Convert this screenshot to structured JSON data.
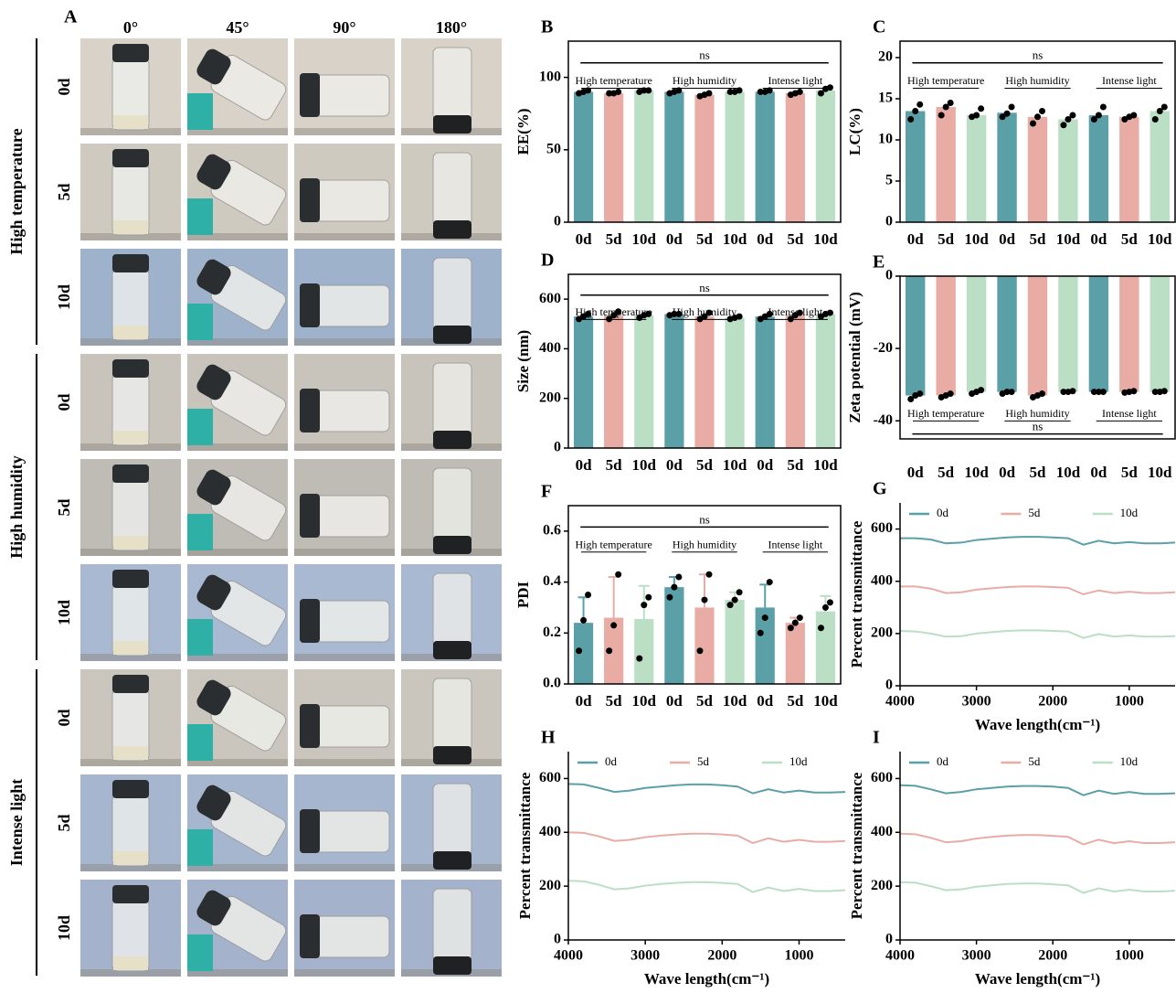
{
  "panel_a": {
    "panel": "A",
    "columns": [
      "0°",
      "45°",
      "90°",
      "180°"
    ],
    "rows": [
      "0d",
      "5d",
      "10d",
      "0d",
      "5d",
      "10d",
      "0d",
      "5d",
      "10d"
    ],
    "groups": [
      "High temperature",
      "High humidity",
      "Intense light"
    ]
  },
  "chart_data": [
    {
      "type": "bar",
      "panel": "B",
      "y_label": "EE(%)",
      "categories": [
        "0d",
        "5d",
        "10d",
        "0d",
        "5d",
        "10d",
        "0d",
        "5d",
        "10d"
      ],
      "group_labels": [
        "High temperature",
        "High humidity",
        "Intense light"
      ],
      "annotation": "ns",
      "colors": [
        "#5b9fa7",
        "#e8aca5",
        "#badfc5"
      ],
      "values": [
        90,
        89,
        91,
        90,
        88,
        90,
        90,
        89,
        91
      ],
      "points": [
        [
          89,
          90,
          91
        ],
        [
          89,
          89,
          90
        ],
        [
          90,
          91,
          91
        ],
        [
          89,
          90,
          91
        ],
        [
          87,
          88,
          89
        ],
        [
          90,
          90,
          91
        ],
        [
          90,
          90,
          91
        ],
        [
          88,
          89,
          90
        ],
        [
          89,
          92,
          93
        ]
      ],
      "ylim": [
        0,
        125
      ],
      "yticks": [
        0,
        50,
        100
      ]
    },
    {
      "type": "bar",
      "panel": "C",
      "y_label": "LC(%)",
      "categories": [
        "0d",
        "5d",
        "10d",
        "0d",
        "5d",
        "10d",
        "0d",
        "5d",
        "10d"
      ],
      "group_labels": [
        "High temperature",
        "High humidity",
        "Intense light"
      ],
      "annotation": "ns",
      "colors": [
        "#5b9fa7",
        "#e8aca5",
        "#badfc5"
      ],
      "values": [
        13.5,
        14,
        13,
        13.3,
        12.8,
        12.5,
        13,
        12.8,
        13.5
      ],
      "points": [
        [
          12.5,
          13.5,
          14.3
        ],
        [
          13,
          14,
          14.5
        ],
        [
          12.8,
          13,
          13.8
        ],
        [
          12.8,
          13.2,
          14
        ],
        [
          12,
          12.8,
          13.5
        ],
        [
          11.8,
          12.5,
          13
        ],
        [
          12.5,
          13,
          14
        ],
        [
          12.5,
          12.8,
          13
        ],
        [
          12.5,
          13.5,
          14
        ]
      ],
      "ylim": [
        0,
        22
      ],
      "yticks": [
        0,
        5,
        10,
        15,
        20
      ]
    },
    {
      "type": "bar",
      "panel": "D",
      "y_label": "Size (nm)",
      "categories": [
        "0d",
        "5d",
        "10d",
        "0d",
        "5d",
        "10d",
        "0d",
        "5d",
        "10d"
      ],
      "group_labels": [
        "High temperature",
        "High humidity",
        "Intense light"
      ],
      "annotation": "ns",
      "colors": [
        "#5b9fa7",
        "#e8aca5",
        "#badfc5"
      ],
      "values": [
        530,
        535,
        535,
        540,
        530,
        525,
        530,
        535,
        540
      ],
      "points": [
        [
          520,
          530,
          540
        ],
        [
          520,
          535,
          550
        ],
        [
          525,
          535,
          540
        ],
        [
          535,
          540,
          540
        ],
        [
          520,
          530,
          545
        ],
        [
          520,
          525,
          530
        ],
        [
          520,
          530,
          540
        ],
        [
          520,
          535,
          545
        ],
        [
          530,
          540,
          545
        ]
      ],
      "ylim": [
        0,
        700
      ],
      "yticks": [
        0,
        200,
        400,
        600
      ]
    },
    {
      "type": "bar",
      "panel": "E",
      "y_label": "Zeta potential (mV)",
      "categories": [
        "0d",
        "5d",
        "10d",
        "0d",
        "5d",
        "10d",
        "0d",
        "5d",
        "10d"
      ],
      "group_labels": [
        "High temperature",
        "High humidity",
        "Intense light"
      ],
      "annotation": "ns",
      "colors": [
        "#5b9fa7",
        "#e8aca5",
        "#badfc5"
      ],
      "values": [
        -33,
        -33,
        -32,
        -32,
        -33,
        -32,
        -32,
        -32,
        -32
      ],
      "points": [
        [
          -34,
          -33,
          -32.5
        ],
        [
          -33.5,
          -33,
          -32.5
        ],
        [
          -32.5,
          -32,
          -31.5
        ],
        [
          -32.5,
          -32,
          -32
        ],
        [
          -33.5,
          -33,
          -32.5
        ],
        [
          -32,
          -32,
          -31.8
        ],
        [
          -32,
          -32,
          -32
        ],
        [
          -32.2,
          -32,
          -31.8
        ],
        [
          -32,
          -32,
          -31.8
        ]
      ],
      "ylim": [
        -45,
        0
      ],
      "yticks": [
        -40,
        -20,
        0
      ]
    },
    {
      "type": "bar",
      "panel": "F",
      "y_label": "PDI",
      "categories": [
        "0d",
        "5d",
        "10d",
        "0d",
        "5d",
        "10d",
        "0d",
        "5d",
        "10d"
      ],
      "group_labels": [
        "High temperature",
        "High humidity",
        "Intense light"
      ],
      "annotation": "ns",
      "colors": [
        "#5b9fa7",
        "#e8aca5",
        "#badfc5"
      ],
      "values": [
        0.24,
        0.26,
        0.255,
        0.38,
        0.3,
        0.33,
        0.3,
        0.24,
        0.285
      ],
      "errors": [
        0.1,
        0.16,
        0.13,
        0.04,
        0.13,
        0.03,
        0.09,
        0.02,
        0.06
      ],
      "points": [
        [
          0.13,
          0.25,
          0.35
        ],
        [
          0.13,
          0.23,
          0.43
        ],
        [
          0.1,
          0.31,
          0.34
        ],
        [
          0.34,
          0.38,
          0.42
        ],
        [
          0.13,
          0.33,
          0.43
        ],
        [
          0.31,
          0.33,
          0.36
        ],
        [
          0.2,
          0.26,
          0.4
        ],
        [
          0.22,
          0.24,
          0.26
        ],
        [
          0.22,
          0.3,
          0.32
        ]
      ],
      "ylim": [
        0,
        0.7
      ],
      "yticks": [
        {
          "value": 0,
          "label": "0.0"
        },
        0.2,
        0.4,
        0.6
      ]
    },
    {
      "type": "line",
      "panel": "G",
      "y_label": "Percent transmittance",
      "x_label": "Wave length(cm⁻¹)",
      "x": [
        4000,
        3800,
        3600,
        3400,
        3200,
        3000,
        2800,
        2600,
        2400,
        2200,
        2000,
        1800,
        1600,
        1400,
        1200,
        1000,
        800,
        600,
        400
      ],
      "series": [
        {
          "name": "0d",
          "color": "#5b9fa7",
          "values": [
            565,
            565,
            560,
            545,
            548,
            558,
            563,
            568,
            570,
            570,
            568,
            565,
            540,
            555,
            545,
            550,
            545,
            545,
            548
          ]
        },
        {
          "name": "5d",
          "color": "#e8aca5",
          "values": [
            380,
            380,
            372,
            355,
            358,
            368,
            373,
            378,
            380,
            380,
            378,
            375,
            350,
            365,
            355,
            360,
            355,
            355,
            358
          ]
        },
        {
          "name": "10d",
          "color": "#badfc5",
          "values": [
            210,
            208,
            200,
            188,
            190,
            200,
            205,
            210,
            212,
            212,
            210,
            208,
            183,
            198,
            188,
            193,
            188,
            188,
            190
          ]
        }
      ],
      "xlim": [
        4000,
        400
      ],
      "ylim": [
        0,
        700
      ],
      "xticks": [
        4000,
        3000,
        2000,
        1000
      ],
      "yticks": [
        0,
        200,
        400,
        600
      ]
    },
    {
      "type": "line",
      "panel": "H",
      "y_label": "Percent transmittance",
      "x_label": "Wave length(cm⁻¹)",
      "x": [
        4000,
        3800,
        3600,
        3400,
        3200,
        3000,
        2800,
        2600,
        2400,
        2200,
        2000,
        1800,
        1600,
        1400,
        1200,
        1000,
        800,
        600,
        400
      ],
      "series": [
        {
          "name": "0d",
          "color": "#5b9fa7",
          "values": [
            580,
            578,
            565,
            550,
            555,
            565,
            570,
            575,
            578,
            578,
            575,
            570,
            545,
            560,
            548,
            555,
            548,
            548,
            550
          ]
        },
        {
          "name": "5d",
          "color": "#e8aca5",
          "values": [
            400,
            398,
            385,
            368,
            372,
            382,
            388,
            392,
            395,
            395,
            392,
            388,
            360,
            378,
            365,
            372,
            365,
            365,
            368
          ]
        },
        {
          "name": "10d",
          "color": "#badfc5",
          "values": [
            220,
            218,
            205,
            188,
            192,
            202,
            208,
            212,
            215,
            215,
            212,
            208,
            178,
            195,
            182,
            190,
            182,
            182,
            185
          ]
        }
      ],
      "xlim": [
        4000,
        400
      ],
      "ylim": [
        0,
        700
      ],
      "xticks": [
        4000,
        3000,
        2000,
        1000
      ],
      "yticks": [
        0,
        200,
        400,
        600
      ]
    },
    {
      "type": "line",
      "panel": "I",
      "y_label": "Percent transmittance",
      "x_label": "Wave length(cm⁻¹)",
      "x": [
        4000,
        3800,
        3600,
        3400,
        3200,
        3000,
        2800,
        2600,
        2400,
        2200,
        2000,
        1800,
        1600,
        1400,
        1200,
        1000,
        800,
        600,
        400
      ],
      "series": [
        {
          "name": "0d",
          "color": "#5b9fa7",
          "values": [
            575,
            573,
            560,
            545,
            550,
            560,
            565,
            570,
            572,
            572,
            570,
            565,
            538,
            555,
            543,
            550,
            543,
            543,
            545
          ]
        },
        {
          "name": "5d",
          "color": "#e8aca5",
          "values": [
            395,
            393,
            380,
            363,
            367,
            377,
            383,
            388,
            390,
            390,
            387,
            383,
            355,
            373,
            360,
            367,
            360,
            360,
            363
          ]
        },
        {
          "name": "10d",
          "color": "#badfc5",
          "values": [
            215,
            213,
            200,
            185,
            188,
            198,
            203,
            208,
            210,
            210,
            207,
            203,
            175,
            192,
            180,
            187,
            180,
            180,
            183
          ]
        }
      ],
      "xlim": [
        4000,
        400
      ],
      "ylim": [
        0,
        700
      ],
      "xticks": [
        4000,
        3000,
        2000,
        1000
      ],
      "yticks": [
        0,
        200,
        400,
        600
      ]
    }
  ]
}
